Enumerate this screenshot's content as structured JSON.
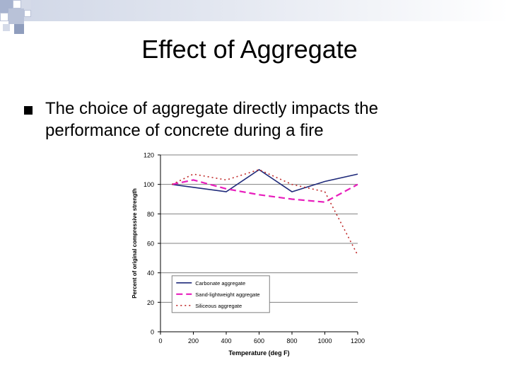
{
  "slide": {
    "title": "Effect of Aggregate",
    "bullet_text": "The choice of aggregate directly impacts the performance of concrete during a fire"
  },
  "colors": {
    "background": "#ffffff",
    "topbar": "#cfd6e6",
    "grid": "#808080",
    "axis": "#000000"
  },
  "chart_data": {
    "type": "line",
    "title": "",
    "xlabel": "Temperature (deg F)",
    "ylabel": "Percent of original compressive strength",
    "xlim": [
      0,
      1200
    ],
    "ylim": [
      0,
      120
    ],
    "xticks": [
      0,
      200,
      400,
      600,
      800,
      1000,
      1200
    ],
    "yticks": [
      0,
      20,
      40,
      60,
      80,
      100,
      120
    ],
    "grid": "horizontal",
    "legend_position": "bottom-left",
    "series": [
      {
        "name": "Carbonate aggregate",
        "color": "#1f2a7a",
        "style": "solid",
        "x": [
          70,
          200,
          400,
          600,
          800,
          1000,
          1200
        ],
        "y": [
          100,
          98,
          95,
          110,
          95,
          102,
          107
        ]
      },
      {
        "name": "Sand-lightweight aggregate",
        "color": "#e81ebd",
        "style": "dashed",
        "x": [
          70,
          200,
          400,
          600,
          800,
          1000,
          1200
        ],
        "y": [
          100,
          103,
          97,
          93,
          90,
          88,
          100
        ]
      },
      {
        "name": "Siliceous aggregate",
        "color": "#c02a2a",
        "style": "dotted",
        "x": [
          70,
          200,
          400,
          600,
          800,
          1000,
          1200
        ],
        "y": [
          100,
          107,
          103,
          110,
          100,
          95,
          52
        ]
      }
    ]
  }
}
